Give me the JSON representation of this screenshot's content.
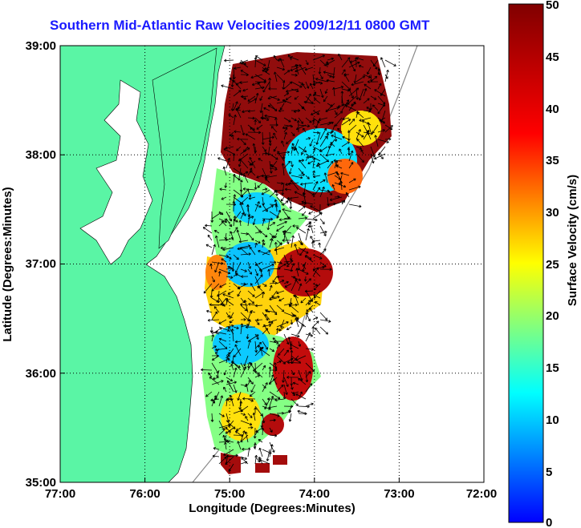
{
  "chart_data": {
    "type": "heatmap",
    "title": "Southern Mid-Atlantic Raw Velocities 2009/12/11 0800 GMT",
    "xlabel": "Longitude (Degrees:Minutes)",
    "ylabel": "Latitude (Degrees:Minutes)",
    "colorbar_label": "Surface Velocity (cm/s)",
    "x_ticks": [
      "77:00",
      "76:00",
      "75:00",
      "74:00",
      "73:00",
      "72:00"
    ],
    "y_ticks": [
      "39:00",
      "38:00",
      "37:00",
      "36:00",
      "35:00"
    ],
    "colorbar_ticks": [
      "50",
      "45",
      "40",
      "35",
      "30",
      "25",
      "20",
      "15",
      "10",
      "5",
      "0"
    ],
    "xlim": [
      -77,
      -72
    ],
    "ylim": [
      35,
      39
    ],
    "clim": [
      0,
      50
    ],
    "grid": true,
    "colormap": "jet",
    "land_color": "#5af5a5",
    "ocean_color": "#ffffff"
  }
}
